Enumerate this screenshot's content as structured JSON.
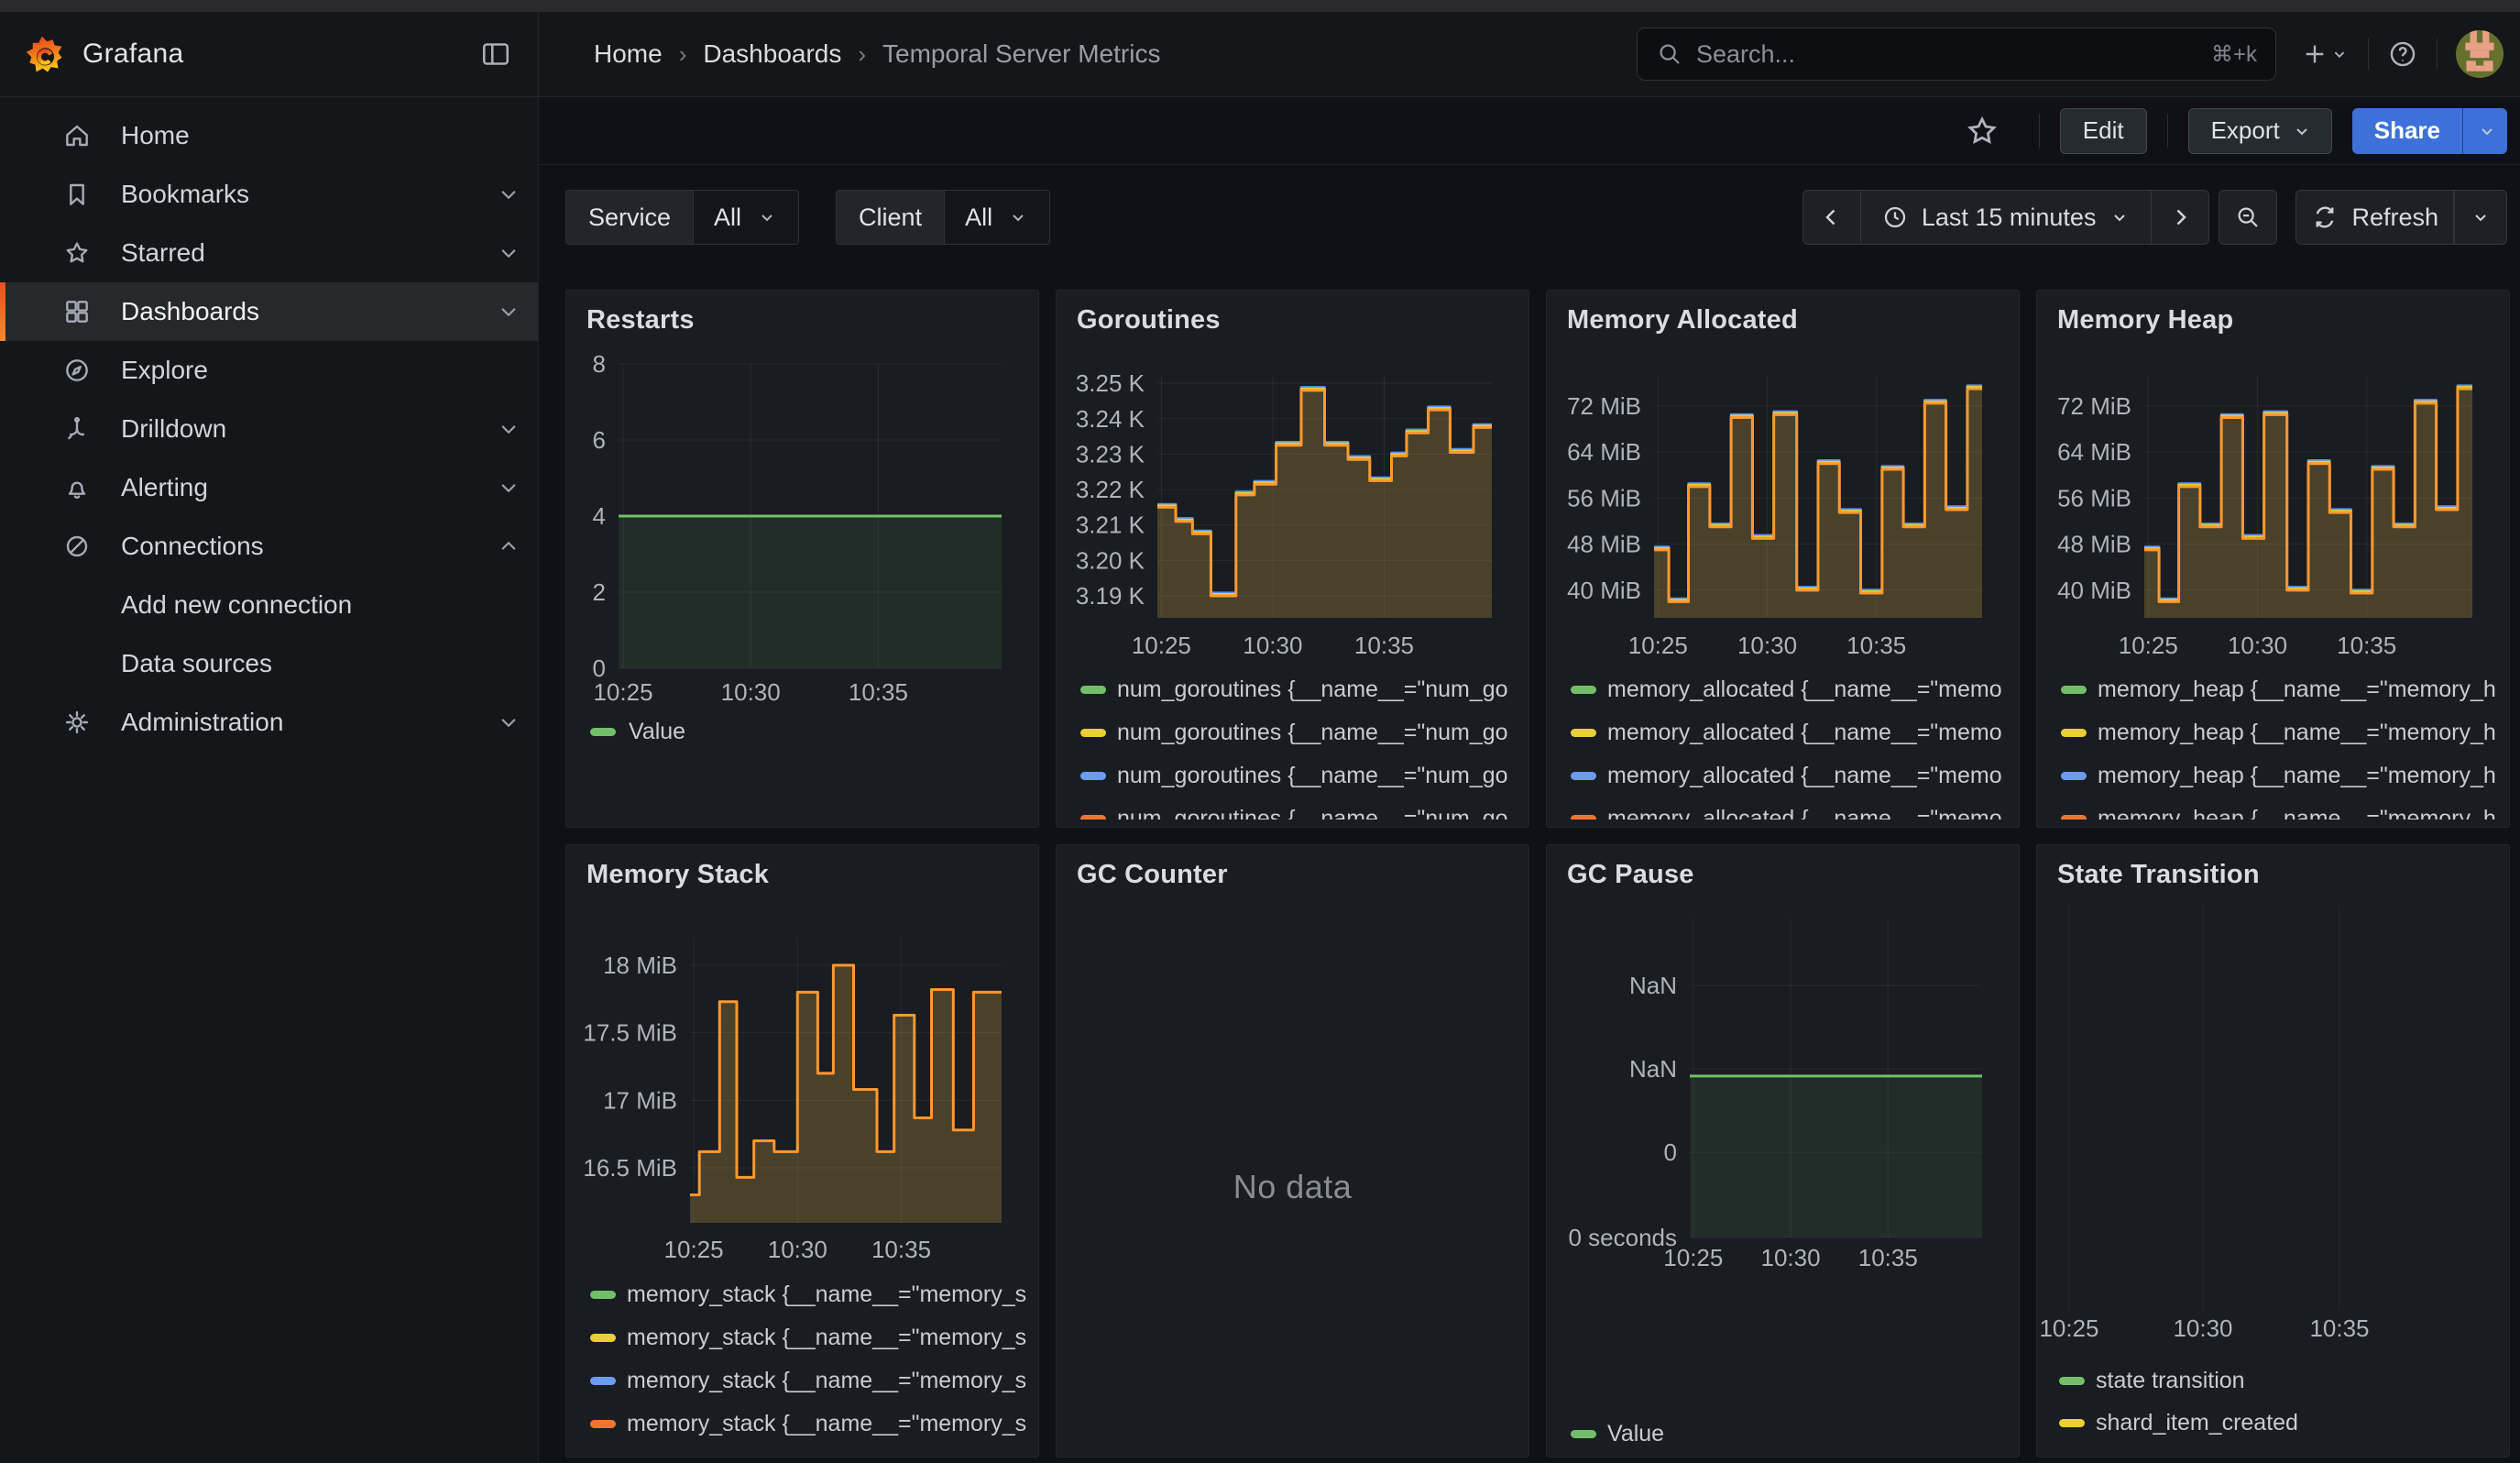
{
  "topnav": {
    "brand": "Grafana",
    "breadcrumb": [
      "Home",
      "Dashboards",
      "Temporal Server Metrics"
    ],
    "search_placeholder": "Search...",
    "search_shortcut": "⌘+k"
  },
  "toolbar": {
    "edit": "Edit",
    "export": "Export",
    "share": "Share"
  },
  "filterbar": {
    "service_label": "Service",
    "service_value": "All",
    "client_label": "Client",
    "client_value": "All",
    "time_range": "Last 15 minutes",
    "refresh": "Refresh"
  },
  "sidebar": {
    "items": [
      {
        "label": "Home",
        "icon": "home"
      },
      {
        "label": "Bookmarks",
        "icon": "bookmark",
        "chevron": "down"
      },
      {
        "label": "Starred",
        "icon": "star",
        "chevron": "down"
      },
      {
        "label": "Dashboards",
        "icon": "apps",
        "chevron": "down",
        "selected": true
      },
      {
        "label": "Explore",
        "icon": "compass"
      },
      {
        "label": "Drilldown",
        "icon": "drilldown",
        "chevron": "down"
      },
      {
        "label": "Alerting",
        "icon": "bell",
        "chevron": "down"
      },
      {
        "label": "Connections",
        "icon": "plug",
        "chevron": "up"
      },
      {
        "label": "Add new connection",
        "sub": true
      },
      {
        "label": "Data sources",
        "sub": true
      },
      {
        "label": "Administration",
        "icon": "gear",
        "chevron": "down"
      }
    ]
  },
  "colors": {
    "green": "#73bf69",
    "yellow": "#eace3a",
    "blue": "#5794f2",
    "orange_line": "#ff9830",
    "orange_legend": "#f0762f",
    "share_blue": "#3d71d9",
    "selected_accent": "#f05a28"
  },
  "panels": [
    {
      "id": "restarts",
      "title": "Restarts",
      "chart_data": {
        "type": "area",
        "x_ticks": [
          "10:25",
          "10:30",
          "10:35"
        ],
        "y_ticks": [
          {
            "label": "8",
            "v": 8
          },
          {
            "label": "6",
            "v": 6
          },
          {
            "label": "4",
            "v": 4
          },
          {
            "label": "2",
            "v": 2
          },
          {
            "label": "0",
            "v": 0
          }
        ],
        "ylim": [
          0,
          8
        ],
        "points": [
          [
            0,
            4
          ],
          [
            1,
            4
          ]
        ],
        "fill": "rgba(115,191,105,0.10)",
        "series": [
          {
            "name": "Value",
            "color": "#73bf69",
            "line": "#73bf69"
          }
        ]
      }
    },
    {
      "id": "goroutines",
      "title": "Goroutines",
      "chart_data": {
        "type": "area",
        "x_ticks": [
          "10:25",
          "10:30",
          "10:35"
        ],
        "y_ticks": [
          {
            "label": "3.25 K",
            "v": 3.25
          },
          {
            "label": "3.24 K",
            "v": 3.24
          },
          {
            "label": "3.23 K",
            "v": 3.23
          },
          {
            "label": "3.22 K",
            "v": 3.22
          },
          {
            "label": "3.21 K",
            "v": 3.21
          },
          {
            "label": "3.20 K",
            "v": 3.2
          },
          {
            "label": "3.19 K",
            "v": 3.19
          }
        ],
        "ylim": [
          3.1838,
          3.2521
        ],
        "points": [
          [
            0,
            3.215
          ],
          [
            0.055,
            3.211
          ],
          [
            0.105,
            3.2075
          ],
          [
            0.16,
            3.19
          ],
          [
            0.235,
            3.2185
          ],
          [
            0.29,
            3.2215
          ],
          [
            0.355,
            3.2325
          ],
          [
            0.43,
            3.248
          ],
          [
            0.5,
            3.2325
          ],
          [
            0.57,
            3.2285
          ],
          [
            0.635,
            3.2225
          ],
          [
            0.7,
            3.2295
          ],
          [
            0.745,
            3.236
          ],
          [
            0.81,
            3.2425
          ],
          [
            0.875,
            3.2305
          ],
          [
            0.945,
            3.2375
          ],
          [
            1,
            3.2375
          ]
        ],
        "fill": "rgba(226,186,70,0.24)",
        "series": [
          {
            "name": "num_goroutines {__name__=\"num_go",
            "color": "#73bf69",
            "line": "#73bf69"
          },
          {
            "name": "num_goroutines {__name__=\"num_go",
            "color": "#eace3a",
            "line": "#eace3a"
          },
          {
            "name": "num_goroutines {__name__=\"num_go",
            "color": "#6d9bf1",
            "line": "#5794f2"
          },
          {
            "name": "num_goroutines {__name__=\"num_go",
            "color": "#f0762f",
            "line": "#ff9830"
          }
        ]
      }
    },
    {
      "id": "memory_allocated",
      "title": "Memory Allocated",
      "chart_data": {
        "type": "area",
        "x_ticks": [
          "10:25",
          "10:30",
          "10:35"
        ],
        "y_ticks": [
          {
            "label": "72 MiB",
            "v": 72
          },
          {
            "label": "64 MiB",
            "v": 64
          },
          {
            "label": "56 MiB",
            "v": 56
          },
          {
            "label": "48 MiB",
            "v": 48
          },
          {
            "label": "40 MiB",
            "v": 40
          }
        ],
        "ylim": [
          35.2,
          77.25
        ],
        "points": [
          [
            0,
            47
          ],
          [
            0.045,
            38
          ],
          [
            0.105,
            58
          ],
          [
            0.17,
            51
          ],
          [
            0.235,
            70
          ],
          [
            0.3,
            49
          ],
          [
            0.365,
            70.5
          ],
          [
            0.435,
            40
          ],
          [
            0.5,
            62
          ],
          [
            0.565,
            53.5
          ],
          [
            0.63,
            39.5
          ],
          [
            0.695,
            61
          ],
          [
            0.76,
            51
          ],
          [
            0.825,
            72.5
          ],
          [
            0.89,
            54
          ],
          [
            0.955,
            75
          ],
          [
            1,
            75
          ]
        ],
        "fill": "rgba(226,186,70,0.24)",
        "series": [
          {
            "name": "memory_allocated {__name__=\"memo",
            "color": "#73bf69",
            "line": "#73bf69"
          },
          {
            "name": "memory_allocated {__name__=\"memo",
            "color": "#eace3a",
            "line": "#eace3a"
          },
          {
            "name": "memory_allocated {__name__=\"memo",
            "color": "#6d9bf1",
            "line": "#5794f2"
          },
          {
            "name": "memory_allocated {__name__=\"memo",
            "color": "#f0762f",
            "line": "#ff9830"
          }
        ]
      }
    },
    {
      "id": "memory_heap",
      "title": "Memory Heap",
      "chart_data": {
        "type": "area",
        "x_ticks": [
          "10:25",
          "10:30",
          "10:35"
        ],
        "y_ticks": [
          {
            "label": "72 MiB",
            "v": 72
          },
          {
            "label": "64 MiB",
            "v": 64
          },
          {
            "label": "56 MiB",
            "v": 56
          },
          {
            "label": "48 MiB",
            "v": 48
          },
          {
            "label": "40 MiB",
            "v": 40
          }
        ],
        "ylim": [
          35.2,
          77.25
        ],
        "points": [
          [
            0,
            47
          ],
          [
            0.045,
            38
          ],
          [
            0.105,
            58
          ],
          [
            0.17,
            51
          ],
          [
            0.235,
            70
          ],
          [
            0.3,
            49
          ],
          [
            0.365,
            70.5
          ],
          [
            0.435,
            40
          ],
          [
            0.5,
            62
          ],
          [
            0.565,
            53.5
          ],
          [
            0.63,
            39.5
          ],
          [
            0.695,
            61
          ],
          [
            0.76,
            51
          ],
          [
            0.825,
            72.5
          ],
          [
            0.89,
            54
          ],
          [
            0.955,
            75
          ],
          [
            1,
            75
          ]
        ],
        "fill": "rgba(226,186,70,0.24)",
        "series": [
          {
            "name": "memory_heap {__name__=\"memory_h",
            "color": "#73bf69",
            "line": "#73bf69"
          },
          {
            "name": "memory_heap {__name__=\"memory_h",
            "color": "#eace3a",
            "line": "#eace3a"
          },
          {
            "name": "memory_heap {__name__=\"memory_h",
            "color": "#6d9bf1",
            "line": "#5794f2"
          },
          {
            "name": "memory_heap {__name__=\"memory_h",
            "color": "#f0762f",
            "line": "#ff9830"
          }
        ]
      }
    },
    {
      "id": "memory_stack",
      "title": "Memory Stack",
      "chart_data": {
        "type": "area",
        "x_ticks": [
          "10:25",
          "10:30",
          "10:35"
        ],
        "y_ticks": [
          {
            "label": "18 MiB",
            "v": 18
          },
          {
            "label": "17.5 MiB",
            "v": 17.5
          },
          {
            "label": "17 MiB",
            "v": 17
          },
          {
            "label": "16.5 MiB",
            "v": 16.5
          }
        ],
        "ylim": [
          16.093,
          18.21
        ],
        "points": [
          [
            0,
            16.3
          ],
          [
            0.03,
            16.62
          ],
          [
            0.095,
            17.73
          ],
          [
            0.15,
            16.43
          ],
          [
            0.205,
            16.7
          ],
          [
            0.27,
            16.62
          ],
          [
            0.345,
            17.8
          ],
          [
            0.41,
            17.2
          ],
          [
            0.46,
            18.0
          ],
          [
            0.525,
            17.08
          ],
          [
            0.6,
            16.62
          ],
          [
            0.655,
            17.63
          ],
          [
            0.72,
            16.87
          ],
          [
            0.775,
            17.82
          ],
          [
            0.845,
            16.78
          ],
          [
            0.91,
            17.8
          ],
          [
            1,
            17.8
          ]
        ],
        "fill": "rgba(226,186,70,0.24)",
        "series": [
          {
            "name": "memory_stack {__name__=\"memory_s",
            "color": "#73bf69",
            "line": "#73bf69"
          },
          {
            "name": "memory_stack {__name__=\"memory_s",
            "color": "#eace3a",
            "line": "#eace3a"
          },
          {
            "name": "memory_stack {__name__=\"memory_s",
            "color": "#6d9bf1",
            "line": "#5794f2"
          },
          {
            "name": "memory_stack {__name__=\"memory_s",
            "color": "#f0762f",
            "line": "#ff9830"
          }
        ]
      }
    },
    {
      "id": "gc_counter",
      "title": "GC Counter",
      "no_data": "No data"
    },
    {
      "id": "gc_pause",
      "title": "GC Pause",
      "chart_data": {
        "type": "area",
        "x_ticks": [
          "10:25",
          "10:30",
          "10:35"
        ],
        "y_ticks": [
          {
            "label": "NaN",
            "v": 0.79
          },
          {
            "label": "NaN",
            "v": 0.529
          },
          {
            "label": "0",
            "v": 0.267
          },
          {
            "label": "0 seconds",
            "v": 0
          }
        ],
        "ylim": [
          0,
          1
        ],
        "points": [
          [
            0,
            0.506
          ],
          [
            1,
            0.506
          ]
        ],
        "fill": "rgba(115,191,105,0.10)",
        "series": [
          {
            "name": "Value",
            "color": "#73bf69",
            "line": "#73bf69"
          }
        ]
      }
    },
    {
      "id": "state_transition",
      "title": "State Transition",
      "chart_data": {
        "type": "area",
        "x_ticks": [
          "10:25",
          "10:30",
          "10:35"
        ],
        "y_ticks": [],
        "points": [],
        "series": [
          {
            "name": "state transition",
            "color": "#73bf69",
            "line": "#73bf69"
          },
          {
            "name": "shard_item_created",
            "color": "#eace3a",
            "line": "#eace3a"
          }
        ]
      }
    }
  ]
}
